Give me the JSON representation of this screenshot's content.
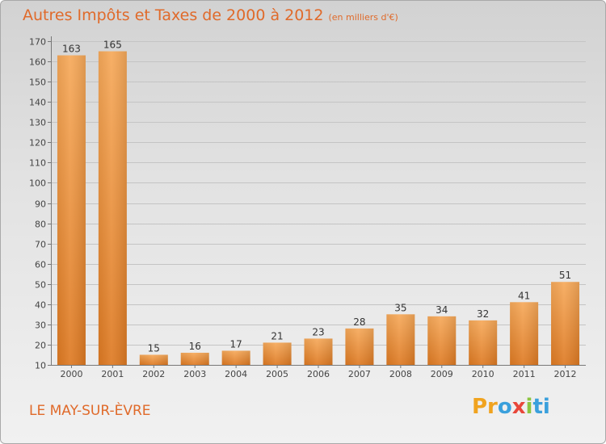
{
  "header": {
    "title": "Autres Impôts et Taxes de 2000 à 2012",
    "unit": "(en milliers d'€)"
  },
  "footer": {
    "town": "LE MAY-SUR-ÈVRE",
    "logo": [
      "Pr",
      "o",
      "x",
      "i",
      "ti"
    ]
  },
  "colors": {
    "accent": "#e06a2a",
    "bar_light": "#f6a95a",
    "bar_dark": "#de7a23"
  },
  "chart_data": {
    "type": "bar",
    "title": "Autres Impôts et Taxes de 2000 à 2012",
    "subtitle": "(en milliers d'€)",
    "xlabel": "",
    "ylabel": "",
    "categories": [
      "2000",
      "2001",
      "2002",
      "2003",
      "2004",
      "2005",
      "2006",
      "2007",
      "2008",
      "2009",
      "2010",
      "2011",
      "2012"
    ],
    "values": [
      163,
      165,
      15,
      16,
      17,
      21,
      23,
      28,
      35,
      34,
      32,
      41,
      51
    ],
    "ylim": [
      10,
      170
    ],
    "yticks": [
      10,
      20,
      30,
      40,
      50,
      60,
      70,
      80,
      90,
      100,
      110,
      120,
      130,
      140,
      150,
      160,
      170
    ],
    "grid": true,
    "data_labels": true
  }
}
